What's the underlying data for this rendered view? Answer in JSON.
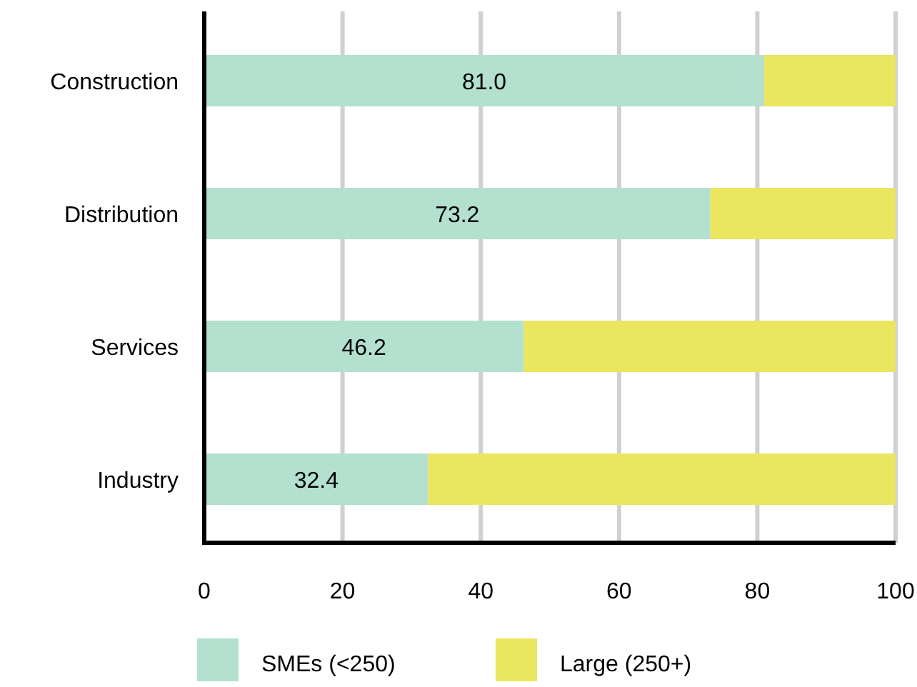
{
  "chart_data": {
    "type": "bar",
    "orientation": "horizontal",
    "stacked": true,
    "categories": [
      "Construction",
      "Distribution",
      "Services",
      "Industry"
    ],
    "series": [
      {
        "name": "SMEs (<250)",
        "color": "#b3e0cf",
        "values": [
          81.0,
          73.2,
          46.2,
          32.4
        ],
        "value_labels": [
          "81.0",
          "73.2",
          "46.2",
          "32.4"
        ]
      },
      {
        "name": "Large (250+)",
        "color": "#ebe65f",
        "values": [
          19.0,
          26.8,
          53.8,
          67.6
        ]
      }
    ],
    "xlim": [
      0,
      100
    ],
    "xticks": [
      0,
      20,
      40,
      60,
      80,
      100
    ],
    "grid": "x",
    "legend": "bottom"
  }
}
